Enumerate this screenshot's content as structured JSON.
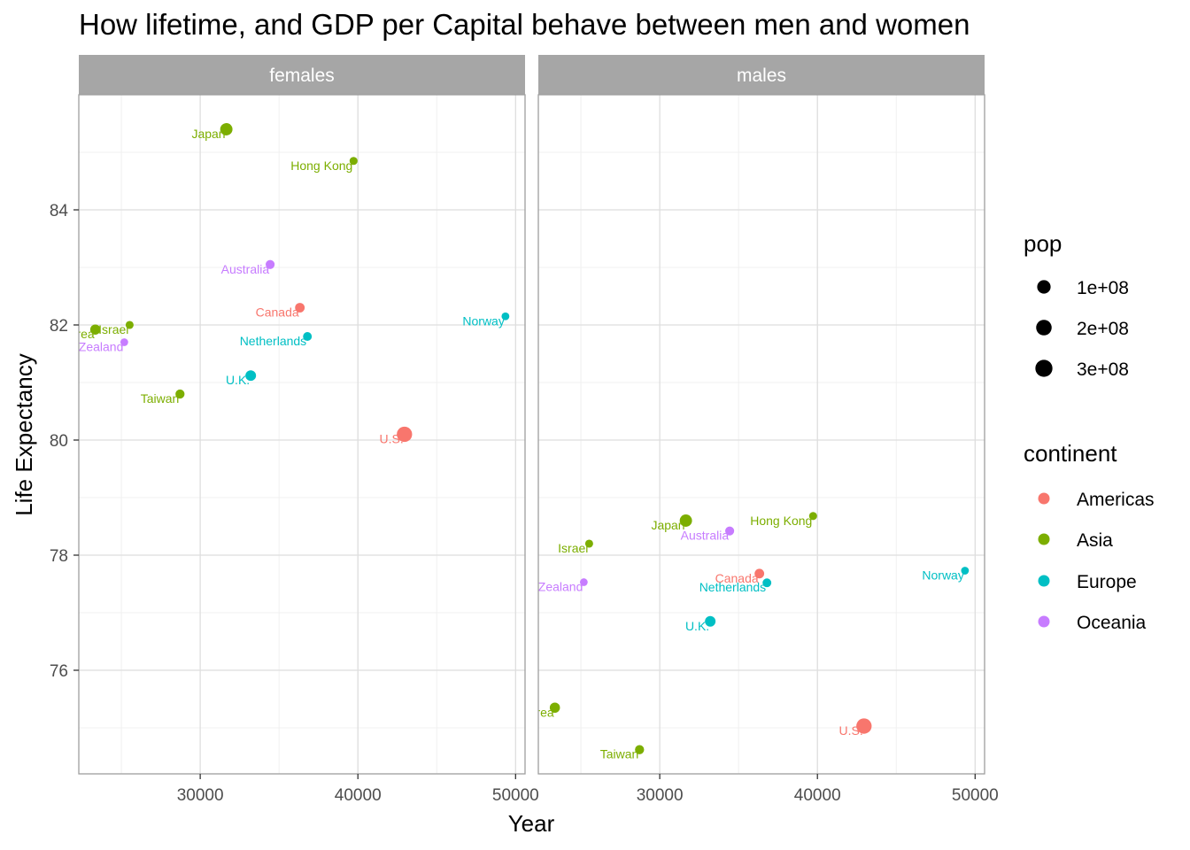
{
  "chart_data": {
    "type": "scatter",
    "title": "How lifetime, and GDP per Capital behave between men and women",
    "xlabel": "Year",
    "ylabel": "Life Expectancy",
    "xlim": [
      22300,
      50600
    ],
    "ylim": [
      74.2,
      86.0
    ],
    "x_ticks": [
      30000,
      40000,
      50000
    ],
    "x_tick_labels": [
      "30000",
      "40000",
      "50000"
    ],
    "y_ticks": [
      76,
      78,
      80,
      82,
      84
    ],
    "y_tick_labels": [
      "76",
      "78",
      "80",
      "82",
      "84"
    ],
    "grid": true,
    "legend_position": "right",
    "size_legend": {
      "title": "pop",
      "entries": [
        {
          "label": "1e+08",
          "value": 100000000
        },
        {
          "label": "2e+08",
          "value": 200000000
        },
        {
          "label": "3e+08",
          "value": 300000000
        }
      ]
    },
    "color_legend": {
      "title": "continent",
      "entries": [
        {
          "label": "Americas",
          "color": "#F8766D"
        },
        {
          "label": "Asia",
          "color": "#7CAE00"
        },
        {
          "label": "Europe",
          "color": "#00BFC4"
        },
        {
          "label": "Oceania",
          "color": "#C77CFF"
        }
      ]
    },
    "panels": [
      {
        "name": "females",
        "points": [
          {
            "label": "Japan",
            "x": 31656,
            "y": 85.4,
            "pop": 127467972,
            "continent": "Asia"
          },
          {
            "label": "Hong Kong",
            "x": 39725,
            "y": 84.85,
            "pop": 6980412,
            "continent": "Asia"
          },
          {
            "label": "Australia",
            "x": 34435,
            "y": 83.05,
            "pop": 20434176,
            "continent": "Oceania"
          },
          {
            "label": "Canada",
            "x": 36319,
            "y": 82.3,
            "pop": 33390141,
            "continent": "Americas"
          },
          {
            "label": "Norway",
            "x": 49357,
            "y": 82.15,
            "pop": 4627926,
            "continent": "Europe"
          },
          {
            "label": "Israel",
            "x": 25523,
            "y": 82.0,
            "pop": 6426679,
            "continent": "Asia"
          },
          {
            "label": "Korea",
            "x": 23348,
            "y": 81.92,
            "pop": 49044790,
            "continent": "Asia"
          },
          {
            "label": "Netherlands",
            "x": 36798,
            "y": 81.8,
            "pop": 16570613,
            "continent": "Europe"
          },
          {
            "label": "New Zealand",
            "x": 25185,
            "y": 81.7,
            "pop": 4115771,
            "continent": "Oceania"
          },
          {
            "label": "U.K.",
            "x": 33203,
            "y": 81.12,
            "pop": 60776238,
            "continent": "Europe"
          },
          {
            "label": "Taiwan",
            "x": 28718,
            "y": 80.8,
            "pop": 23174294,
            "continent": "Asia"
          },
          {
            "label": "U.S.",
            "x": 42952,
            "y": 80.1,
            "pop": 301139947,
            "continent": "Americas"
          }
        ]
      },
      {
        "name": "males",
        "points": [
          {
            "label": "Japan",
            "x": 31656,
            "y": 78.6,
            "pop": 127467972,
            "continent": "Asia"
          },
          {
            "label": "Hong Kong",
            "x": 39725,
            "y": 78.68,
            "pop": 6980412,
            "continent": "Asia"
          },
          {
            "label": "Australia",
            "x": 34435,
            "y": 78.42,
            "pop": 20434176,
            "continent": "Oceania"
          },
          {
            "label": "Israel",
            "x": 25523,
            "y": 78.2,
            "pop": 6426679,
            "continent": "Asia"
          },
          {
            "label": "Norway",
            "x": 49357,
            "y": 77.73,
            "pop": 4627926,
            "continent": "Europe"
          },
          {
            "label": "Canada",
            "x": 36319,
            "y": 77.68,
            "pop": 33390141,
            "continent": "Americas"
          },
          {
            "label": "Netherlands",
            "x": 36798,
            "y": 77.52,
            "pop": 16570613,
            "continent": "Europe"
          },
          {
            "label": "New Zealand",
            "x": 25185,
            "y": 77.53,
            "pop": 4115771,
            "continent": "Oceania"
          },
          {
            "label": "U.K.",
            "x": 33203,
            "y": 76.85,
            "pop": 60776238,
            "continent": "Europe"
          },
          {
            "label": "Korea",
            "x": 23348,
            "y": 75.35,
            "pop": 49044790,
            "continent": "Asia"
          },
          {
            "label": "Taiwan",
            "x": 28718,
            "y": 74.62,
            "pop": 23174294,
            "continent": "Asia"
          },
          {
            "label": "U.S.",
            "x": 42952,
            "y": 75.03,
            "pop": 301139947,
            "continent": "Americas"
          }
        ]
      }
    ]
  }
}
